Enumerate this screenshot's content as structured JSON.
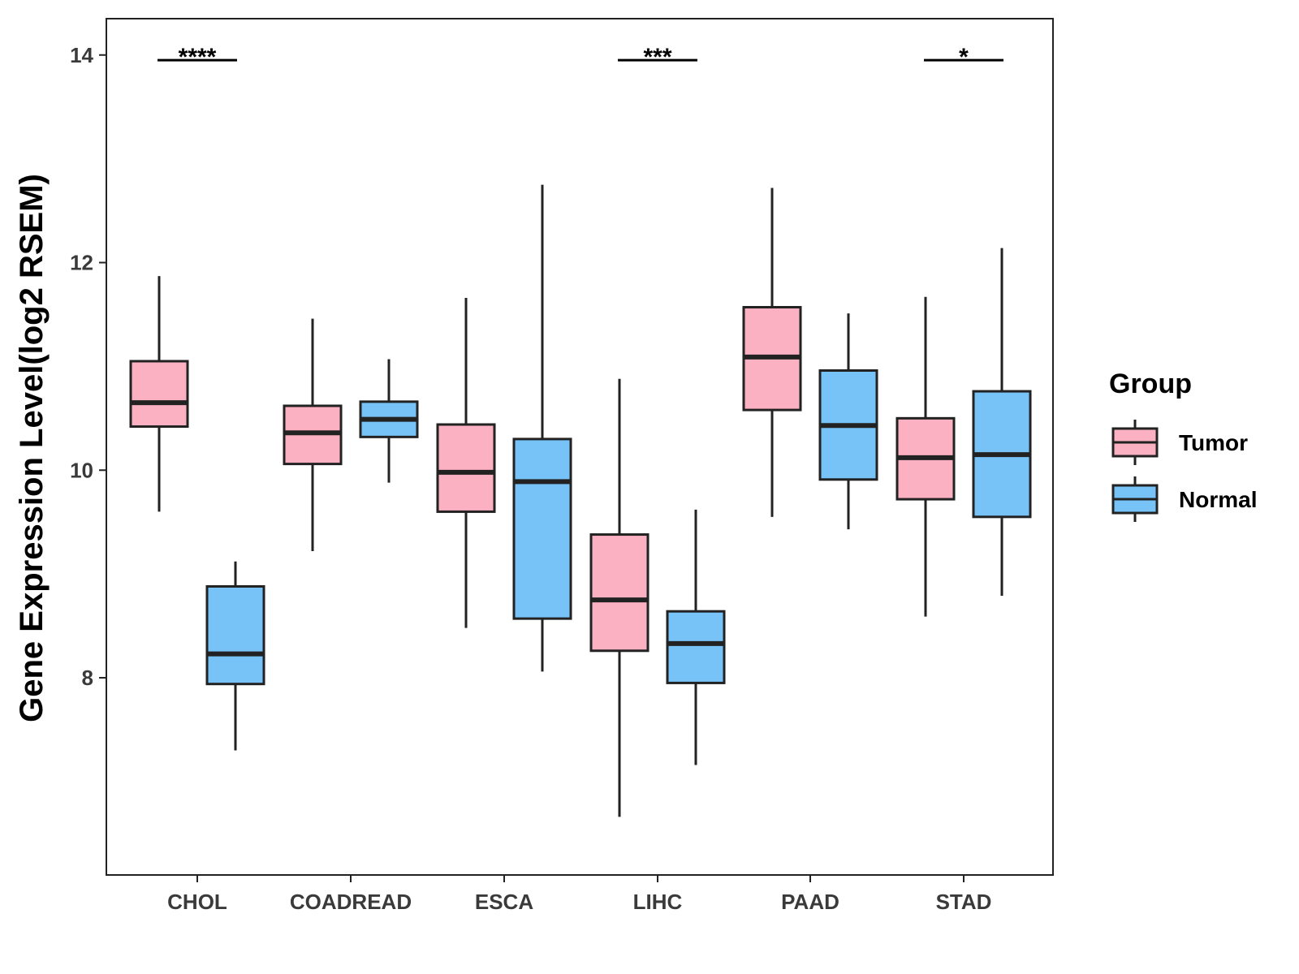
{
  "chart_data": {
    "type": "boxplot",
    "title": "",
    "xlabel": "",
    "ylabel": "Gene Expression Level(log2 RSEM)",
    "ylim": [
      6.1,
      14.35
    ],
    "yticks": [
      8,
      10,
      12,
      14
    ],
    "grid": false,
    "categories": [
      "CHOL",
      "COADREAD",
      "ESCA",
      "LIHC",
      "PAAD",
      "STAD"
    ],
    "legend": {
      "title": "Group",
      "position": "right"
    },
    "series": [
      {
        "name": "Tumor",
        "color": "#FBB1C2",
        "boxes": [
          {
            "min": 9.6,
            "q1": 10.42,
            "median": 10.65,
            "q3": 11.05,
            "max": 11.87
          },
          {
            "min": 9.22,
            "q1": 10.06,
            "median": 10.36,
            "q3": 10.62,
            "max": 11.46
          },
          {
            "min": 8.48,
            "q1": 9.6,
            "median": 9.98,
            "q3": 10.44,
            "max": 11.66
          },
          {
            "min": 6.66,
            "q1": 8.26,
            "median": 8.75,
            "q3": 9.38,
            "max": 10.88
          },
          {
            "min": 9.55,
            "q1": 10.58,
            "median": 11.09,
            "q3": 11.57,
            "max": 12.72
          },
          {
            "min": 8.59,
            "q1": 9.72,
            "median": 10.12,
            "q3": 10.5,
            "max": 11.67
          }
        ]
      },
      {
        "name": "Normal",
        "color": "#77C3F8",
        "boxes": [
          {
            "min": 7.3,
            "q1": 7.94,
            "median": 8.23,
            "q3": 8.88,
            "max": 9.12
          },
          {
            "min": 9.88,
            "q1": 10.32,
            "median": 10.49,
            "q3": 10.66,
            "max": 11.07
          },
          {
            "min": 8.06,
            "q1": 8.57,
            "median": 9.89,
            "q3": 10.3,
            "max": 12.75
          },
          {
            "min": 7.16,
            "q1": 7.95,
            "median": 8.33,
            "q3": 8.64,
            "max": 9.62
          },
          {
            "min": 9.43,
            "q1": 9.91,
            "median": 10.43,
            "q3": 10.96,
            "max": 11.51
          },
          {
            "min": 8.79,
            "q1": 9.55,
            "median": 10.15,
            "q3": 10.76,
            "max": 12.14
          }
        ]
      }
    ],
    "annotations": [
      {
        "category": "CHOL",
        "y": 13.95,
        "label": "****"
      },
      {
        "category": "LIHC",
        "y": 13.95,
        "label": "***"
      },
      {
        "category": "STAD",
        "y": 13.95,
        "label": "*"
      }
    ]
  }
}
